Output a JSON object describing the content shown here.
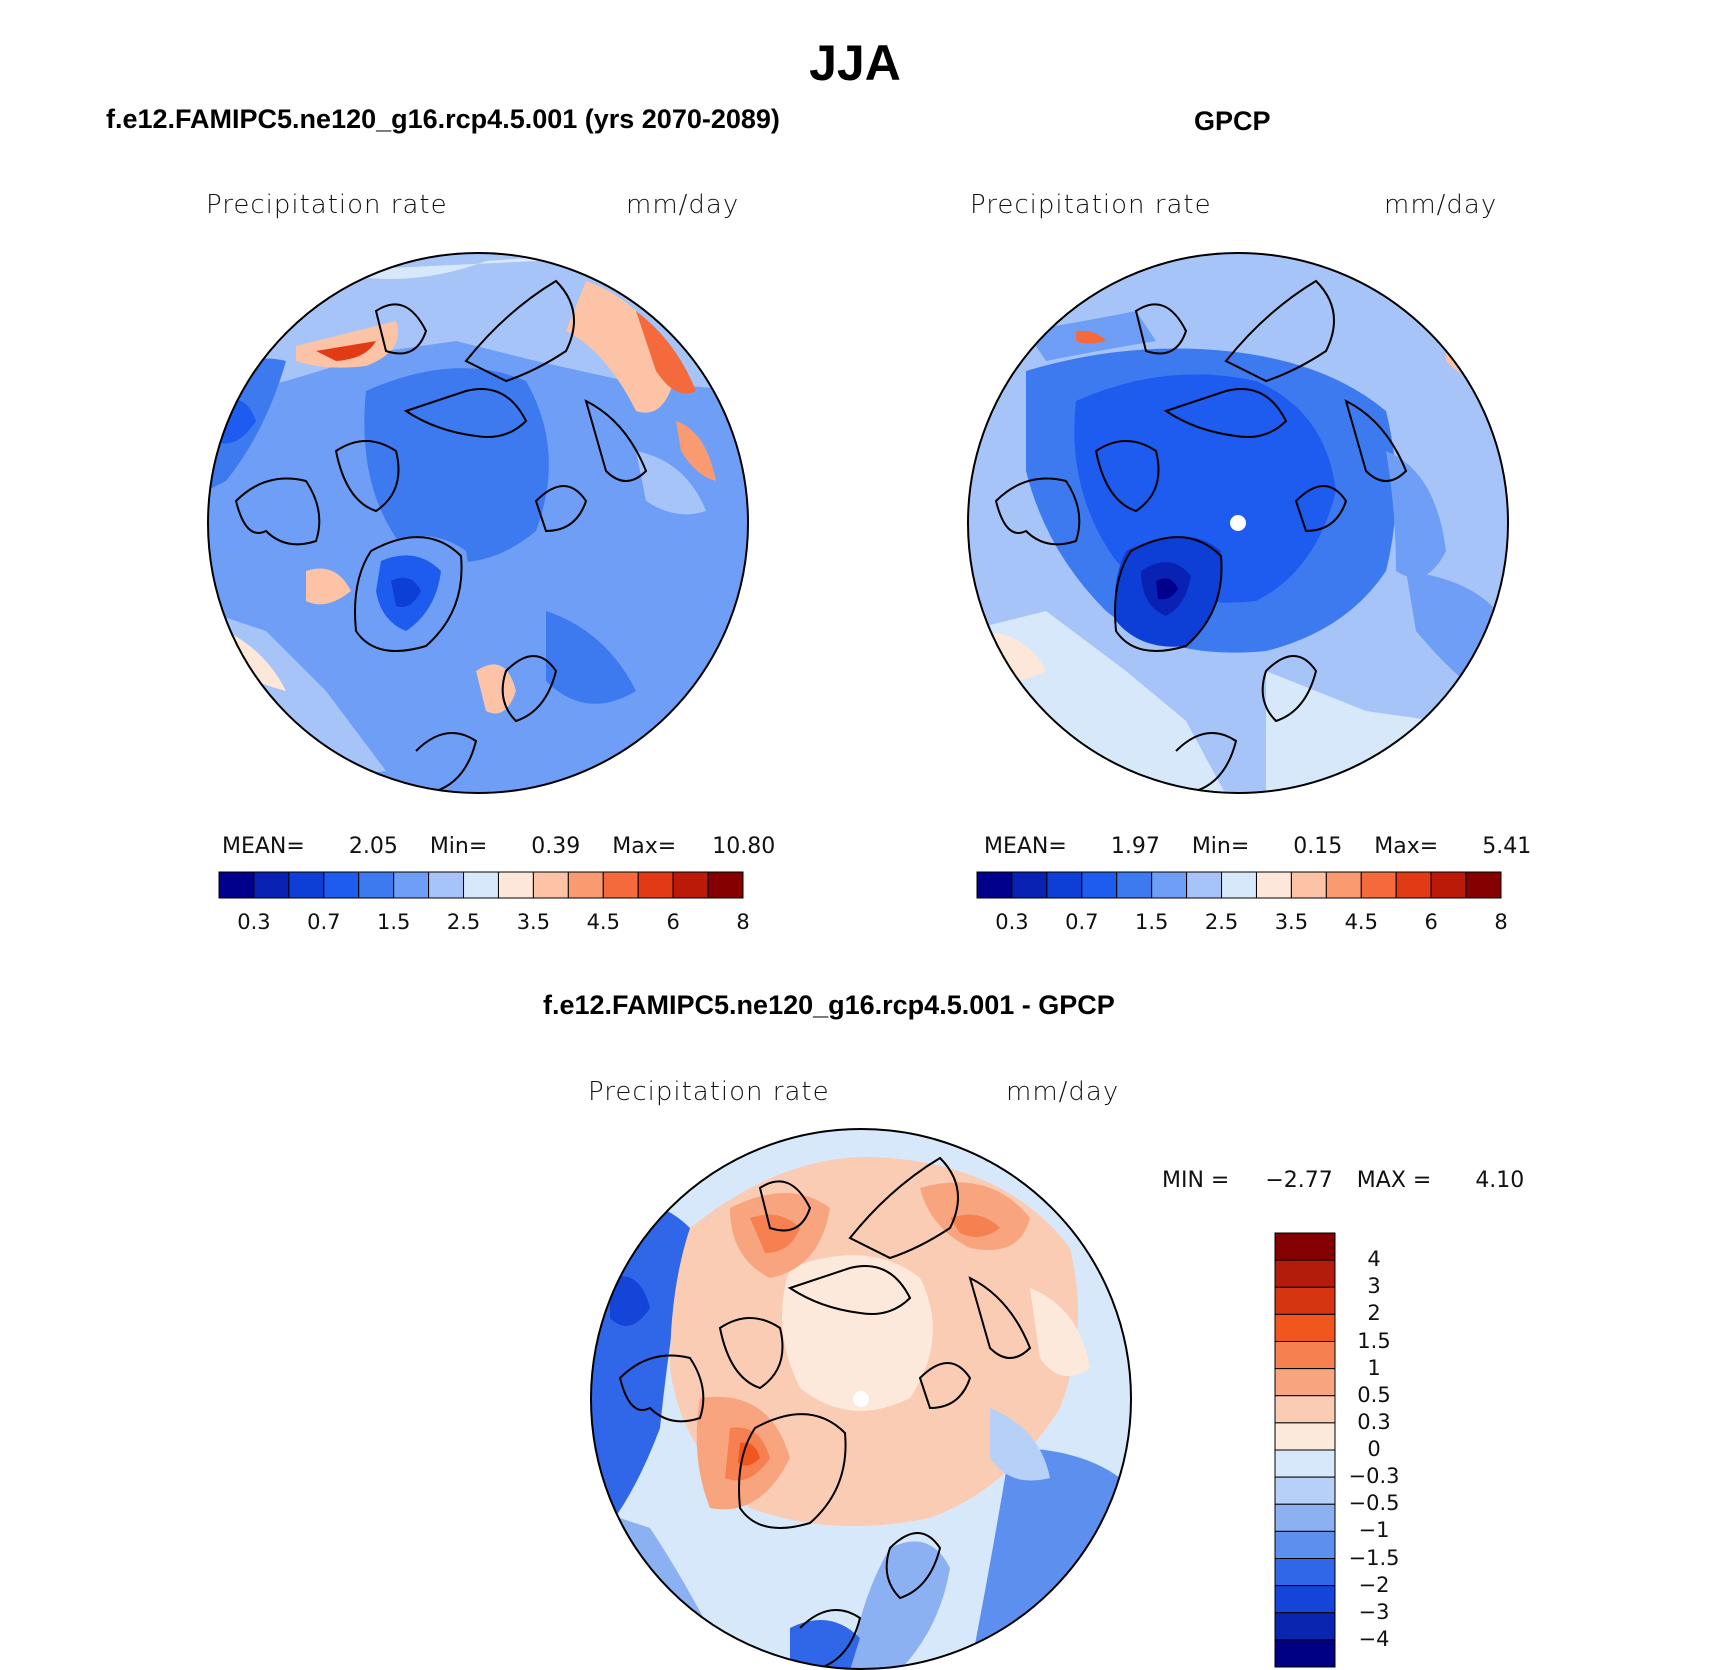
{
  "title": "JJA",
  "panels": [
    {
      "id": "model",
      "title": "f.e12.FAMIPC5.ne120_g16.rcp4.5.001 (yrs 2070-2089)",
      "variable": "Precipitation rate",
      "units": "mm/day",
      "stats": {
        "mean_label": "MEAN=",
        "mean": "2.05",
        "min_label": "Min=",
        "min": "0.39",
        "max_label": "Max=",
        "max": "10.80"
      }
    },
    {
      "id": "obs",
      "title": "GPCP",
      "variable": "Precipitation rate",
      "units": "mm/day",
      "stats": {
        "mean_label": "MEAN=",
        "mean": "1.97",
        "min_label": "Min=",
        "min": "0.15",
        "max_label": "Max=",
        "max": "5.41"
      }
    },
    {
      "id": "diff",
      "title": "f.e12.FAMIPC5.ne120_g16.rcp4.5.001 - GPCP",
      "variable": "Precipitation rate",
      "units": "mm/day",
      "stats": {
        "min_label": "MIN =",
        "min": "−2.77",
        "max_label": "MAX =",
        "max": "4.10"
      }
    }
  ],
  "colorbar_abs": {
    "colors": [
      "#00008c",
      "#0a22b4",
      "#0d3fd6",
      "#1e5cf0",
      "#3d7af0",
      "#6e9ef5",
      "#a7c4f8",
      "#d8e8fb",
      "#fde7d9",
      "#fcc3a6",
      "#f99a70",
      "#f46a3d",
      "#e23a15",
      "#bb1a08",
      "#850000"
    ],
    "tick_labels": [
      "0.3",
      "0.7",
      "1.5",
      "2.5",
      "3.5",
      "4.5",
      "6",
      "8"
    ]
  },
  "colorbar_diff": {
    "colors_top_to_bottom": [
      "#850000",
      "#b31c0a",
      "#d53510",
      "#f2561f",
      "#f68050",
      "#f8a57f",
      "#fbccb4",
      "#fde9dc",
      "#d8e8fb",
      "#b6d0f8",
      "#8cb1f2",
      "#5d8fee",
      "#3066e8",
      "#1444d8",
      "#0a25b0",
      "#000085"
    ],
    "tick_labels": [
      "4",
      "3",
      "2",
      "1.5",
      "1",
      "0.5",
      "0.3",
      "0",
      "−0.3",
      "−0.5",
      "−1",
      "−1.5",
      "−2",
      "−3",
      "−4"
    ]
  }
}
